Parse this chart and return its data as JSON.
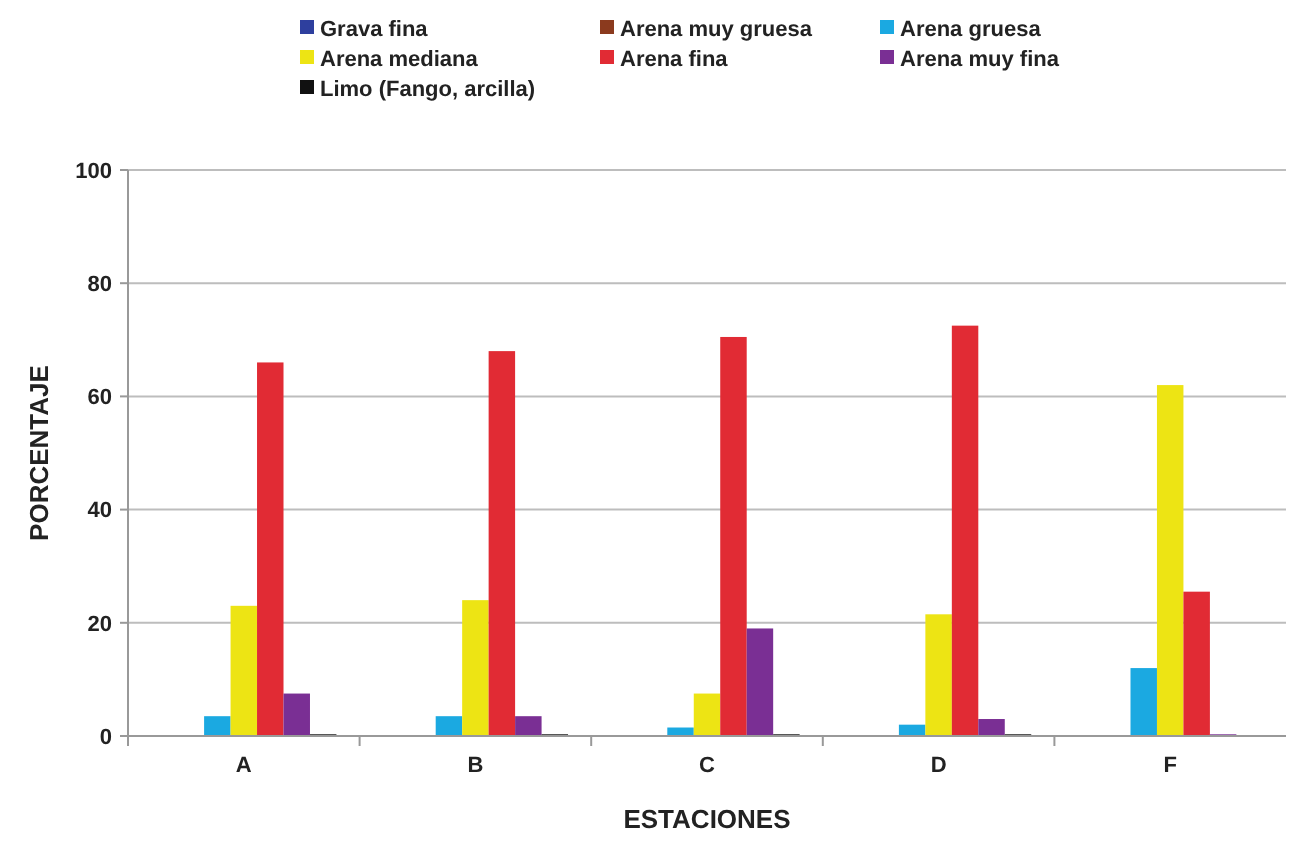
{
  "chart_data": {
    "type": "bar",
    "xlabel": "ESTACIONES",
    "ylabel": "PORCENTAJE",
    "categories": [
      "A",
      "B",
      "C",
      "D",
      "F"
    ],
    "ylim": [
      0,
      100
    ],
    "yticks": [
      0,
      20,
      40,
      60,
      80,
      100
    ],
    "grid": "y",
    "legend": "top",
    "series": [
      {
        "name": "Grava fina",
        "color": "#2e3f9e",
        "values": [
          0,
          0,
          0,
          0,
          0
        ]
      },
      {
        "name": "Arena muy gruesa",
        "color": "#8b3a1e",
        "values": [
          0,
          0,
          0,
          0,
          0
        ]
      },
      {
        "name": "Arena gruesa",
        "color": "#1ba9e1",
        "values": [
          3.5,
          3.5,
          1.5,
          2,
          12
        ]
      },
      {
        "name": "Arena mediana",
        "color": "#ede414",
        "values": [
          23,
          24,
          7.5,
          21.5,
          62
        ]
      },
      {
        "name": "Arena fina",
        "color": "#e12b34",
        "values": [
          66,
          68,
          70.5,
          72.5,
          25.5
        ]
      },
      {
        "name": "Arena muy fina",
        "color": "#7a2f94",
        "values": [
          7.5,
          3.5,
          19,
          3,
          0.3
        ]
      },
      {
        "name": "Limo (Fango, arcilla)",
        "color": "#111111",
        "values": [
          0.3,
          0.3,
          0.3,
          0.3,
          0
        ]
      }
    ]
  }
}
